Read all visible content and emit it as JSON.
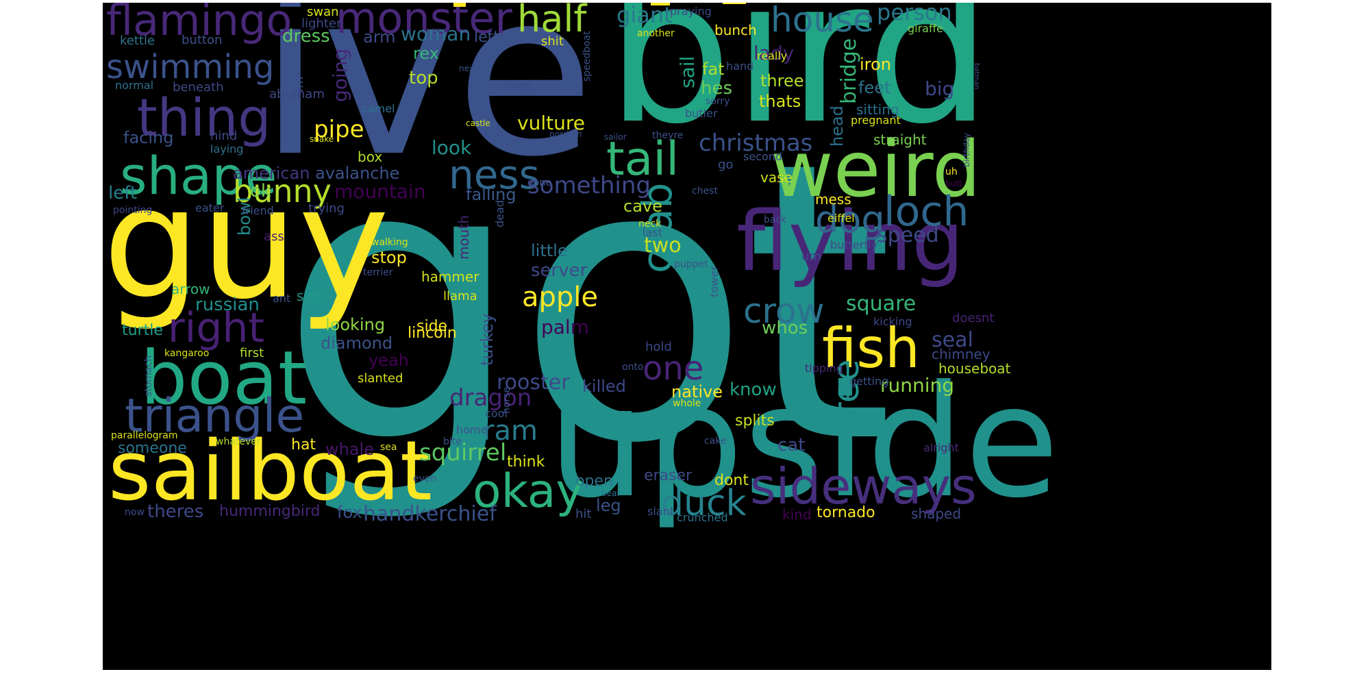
{
  "words": [
    {
      "text": "got",
      "color": "#21918c"
    },
    {
      "text": "ive",
      "color": "#3b528b"
    },
    {
      "text": "bird",
      "color": "#21a585"
    },
    {
      "text": "upside",
      "color": "#21918c"
    },
    {
      "text": "guy",
      "color": "#fde725"
    },
    {
      "text": "weird",
      "color": "#7ad151"
    },
    {
      "text": "flying",
      "color": "#482677"
    },
    {
      "text": "sailboat",
      "color": "#fde725"
    },
    {
      "text": "boat",
      "color": "#22a884"
    },
    {
      "text": "sideways",
      "color": "#472f7d"
    },
    {
      "text": "flamingo",
      "color": "#482878"
    },
    {
      "text": "monster",
      "color": "#482878"
    },
    {
      "text": "thing",
      "color": "#453781"
    },
    {
      "text": "shape",
      "color": "#29af7f"
    },
    {
      "text": "fish",
      "color": "#fde725"
    },
    {
      "text": "triangle",
      "color": "#3b528b"
    },
    {
      "text": "okay",
      "color": "#2db27d"
    },
    {
      "text": "tail",
      "color": "#35b779"
    },
    {
      "text": "ness",
      "color": "#31688e"
    },
    {
      "text": "loch",
      "color": "#31688e"
    },
    {
      "text": "right",
      "color": "#482173"
    },
    {
      "text": "crab",
      "color": "#21918c"
    },
    {
      "text": "dog",
      "color": "#31688e"
    },
    {
      "text": "half",
      "color": "#a0da39"
    },
    {
      "text": "house",
      "color": "#2c728e"
    },
    {
      "text": "swimming",
      "color": "#3b528b"
    },
    {
      "text": "bunny",
      "color": "#b5de2b"
    },
    {
      "text": "crow",
      "color": "#2c728e"
    },
    {
      "text": "tree",
      "color": "#21918c"
    },
    {
      "text": "duck",
      "color": "#26828e"
    },
    {
      "text": "one",
      "color": "#482475"
    },
    {
      "text": "apple",
      "color": "#fde725"
    },
    {
      "text": "christmas",
      "color": "#3b528b"
    },
    {
      "text": "something",
      "color": "#3e4989"
    },
    {
      "text": "ram",
      "color": "#287d8e"
    },
    {
      "text": "giant",
      "color": "#2a788e"
    },
    {
      "text": "person",
      "color": "#2a788e"
    },
    {
      "text": "squirrel",
      "color": "#5ec962"
    },
    {
      "text": "speed",
      "color": "#3e4989"
    },
    {
      "text": "dragon",
      "color": "#482475"
    },
    {
      "text": "square",
      "color": "#35b779"
    },
    {
      "text": "rooster",
      "color": "#3e4989"
    },
    {
      "text": "handkerchief",
      "color": "#3b528b"
    },
    {
      "text": "running",
      "color": "#8fd744"
    },
    {
      "text": "seal",
      "color": "#3e4989"
    },
    {
      "text": "pipe",
      "color": "#fde725"
    },
    {
      "text": "mountain",
      "color": "#440154"
    },
    {
      "text": "vulture",
      "color": "#dce319"
    },
    {
      "text": "look",
      "color": "#21918c"
    },
    {
      "text": "woman",
      "color": "#2c728e"
    },
    {
      "text": "dress",
      "color": "#5ec962"
    },
    {
      "text": "going",
      "color": "#482878"
    },
    {
      "text": "two",
      "color": "#c8e020"
    },
    {
      "text": "big",
      "color": "#3e4989"
    },
    {
      "text": "bridge",
      "color": "#35b779"
    },
    {
      "text": "lady",
      "color": "#482475"
    },
    {
      "text": "sail",
      "color": "#20a386"
    },
    {
      "text": "hes",
      "color": "#6ece58"
    },
    {
      "text": "fat",
      "color": "#b5de2b"
    },
    {
      "text": "iron",
      "color": "#fde725"
    },
    {
      "text": "feet",
      "color": "#2c728e"
    },
    {
      "text": "three",
      "color": "#b5de2b"
    },
    {
      "text": "thats",
      "color": "#dce319"
    },
    {
      "text": "head",
      "color": "#2c728e"
    },
    {
      "text": "whos",
      "color": "#6ece58"
    },
    {
      "text": "know",
      "color": "#20a386"
    },
    {
      "text": "native",
      "color": "#fde725"
    },
    {
      "text": "killed",
      "color": "#3e4989"
    },
    {
      "text": "palm",
      "color": "#440154"
    },
    {
      "text": "server",
      "color": "#3e4989"
    },
    {
      "text": "little",
      "color": "#2c728e"
    },
    {
      "text": "cave",
      "color": "#b5de2b"
    },
    {
      "text": "falling",
      "color": "#38598c"
    },
    {
      "text": "american",
      "color": "#453781"
    },
    {
      "text": "avalanche",
      "color": "#3b528b"
    },
    {
      "text": "facing",
      "color": "#3b528b"
    },
    {
      "text": "left",
      "color": "#25838e"
    },
    {
      "text": "ok",
      "color": "#7ad151"
    },
    {
      "text": "bowl",
      "color": "#228d8d"
    },
    {
      "text": "russian",
      "color": "#228d8d"
    },
    {
      "text": "looking",
      "color": "#8fd744"
    },
    {
      "text": "diamond",
      "color": "#3b528b"
    },
    {
      "text": "turtle",
      "color": "#1fa088"
    },
    {
      "text": "side",
      "color": "#fde725"
    },
    {
      "text": "lincoln",
      "color": "#fde725"
    },
    {
      "text": "turkey",
      "color": "#3b528b"
    },
    {
      "text": "stop",
      "color": "#fde725"
    },
    {
      "text": "hammer",
      "color": "#d2e21b"
    },
    {
      "text": "arrow",
      "color": "#35b779"
    },
    {
      "text": "sign",
      "color": "#1f9a8a"
    },
    {
      "text": "mouth",
      "color": "#482475"
    },
    {
      "text": "yeah",
      "color": "#440154"
    },
    {
      "text": "whale",
      "color": "#48186a"
    },
    {
      "text": "fox",
      "color": "#3b528b"
    },
    {
      "text": "hummingbird",
      "color": "#482878"
    },
    {
      "text": "theres",
      "color": "#3e4989"
    },
    {
      "text": "someone",
      "color": "#2c728e"
    },
    {
      "text": "hat",
      "color": "#fde725"
    },
    {
      "text": "think",
      "color": "#dce319"
    },
    {
      "text": "leg",
      "color": "#3b528b"
    },
    {
      "text": "open",
      "color": "#2c728e"
    },
    {
      "text": "eraser",
      "color": "#3e4989"
    },
    {
      "text": "dont",
      "color": "#dce319"
    },
    {
      "text": "kind",
      "color": "#440154"
    },
    {
      "text": "tornado",
      "color": "#fde725"
    },
    {
      "text": "shaped",
      "color": "#3e4989"
    },
    {
      "text": "splits",
      "color": "#c8e020"
    },
    {
      "text": "cat",
      "color": "#3e4989"
    },
    {
      "text": "top",
      "color": "#b5de2b"
    },
    {
      "text": "rex",
      "color": "#35b779"
    },
    {
      "text": "arm",
      "color": "#3e4989"
    },
    {
      "text": "letter",
      "color": "#3b528b"
    },
    {
      "text": "box",
      "color": "#b5de2b"
    },
    {
      "text": "bunch",
      "color": "#fde725"
    },
    {
      "text": "straight",
      "color": "#7ad151"
    },
    {
      "text": "sitting",
      "color": "#2c728e"
    },
    {
      "text": "chimney",
      "color": "#3e4989"
    },
    {
      "text": "houseboat",
      "color": "#b5de2b"
    },
    {
      "text": "mess",
      "color": "#fde725"
    },
    {
      "text": "vase",
      "color": "#d2e21b"
    },
    {
      "text": "swan",
      "color": "#dce319"
    },
    {
      "text": "lighter",
      "color": "#3e4989"
    },
    {
      "text": "button",
      "color": "#3b528b"
    },
    {
      "text": "kettle",
      "color": "#2c728e"
    },
    {
      "text": "im",
      "color": "#3b528b"
    },
    {
      "text": "abraham",
      "color": "#3e4989"
    },
    {
      "text": "beneath",
      "color": "#3e4989"
    },
    {
      "text": "normal",
      "color": "#2c728e"
    },
    {
      "text": "camel",
      "color": "#2c728e"
    },
    {
      "text": "hind",
      "color": "#3e4989"
    },
    {
      "text": "laying",
      "color": "#2c728e"
    },
    {
      "text": "eater",
      "color": "#3b528b"
    },
    {
      "text": "friend",
      "color": "#3b528b"
    },
    {
      "text": "trying",
      "color": "#3e4989"
    },
    {
      "text": "pointing",
      "color": "#3e4989"
    },
    {
      "text": "ass",
      "color": "#482173"
    },
    {
      "text": "ant",
      "color": "#3b528b"
    },
    {
      "text": "walking",
      "color": "#dce319"
    },
    {
      "text": "terrier",
      "color": "#3b528b"
    },
    {
      "text": "llama",
      "color": "#dce319"
    },
    {
      "text": "kangaroo",
      "color": "#dce319"
    },
    {
      "text": "first",
      "color": "#b5de2b"
    },
    {
      "text": "stomach",
      "color": "#3b528b"
    },
    {
      "text": "slanted",
      "color": "#dce319"
    },
    {
      "text": "horse",
      "color": "#3b528b"
    },
    {
      "text": "cool",
      "color": "#3b528b"
    },
    {
      "text": "home",
      "color": "#3b528b"
    },
    {
      "text": "bite",
      "color": "#3b528b"
    },
    {
      "text": "parallelogram",
      "color": "#dce319"
    },
    {
      "text": "whatever",
      "color": "#b5de2b"
    },
    {
      "text": "sea",
      "color": "#dce319"
    },
    {
      "text": "even",
      "color": "#3b528b"
    },
    {
      "text": "now",
      "color": "#3b528b"
    },
    {
      "text": "hit",
      "color": "#3b528b"
    },
    {
      "text": "bear",
      "color": "#2c728e"
    },
    {
      "text": "slant",
      "color": "#3b528b"
    },
    {
      "text": "crunched",
      "color": "#2c728e"
    },
    {
      "text": "whole",
      "color": "#dce319"
    },
    {
      "text": "cake",
      "color": "#3b528b"
    },
    {
      "text": "alright",
      "color": "#482878"
    },
    {
      "text": "tipping",
      "color": "#482475"
    },
    {
      "text": "getting",
      "color": "#3b528b"
    },
    {
      "text": "onto",
      "color": "#3b528b"
    },
    {
      "text": "hold",
      "color": "#3e4989"
    },
    {
      "text": "kicking",
      "color": "#3e4989"
    },
    {
      "text": "doesnt",
      "color": "#482475"
    },
    {
      "text": "butterfly",
      "color": "#3e4989"
    },
    {
      "text": "um",
      "color": "#3e4989"
    },
    {
      "text": "puppet",
      "color": "#3b528b"
    },
    {
      "text": "tower",
      "color": "#3b528b"
    },
    {
      "text": "last",
      "color": "#3b528b"
    },
    {
      "text": "neck",
      "color": "#dce319"
    },
    {
      "text": "chest",
      "color": "#3b528b"
    },
    {
      "text": "eiffel",
      "color": "#dce319"
    },
    {
      "text": "back",
      "color": "#3b528b"
    },
    {
      "text": "uh",
      "color": "#fde725"
    },
    {
      "text": "butt",
      "color": "#440154"
    },
    {
      "text": "birthday",
      "color": "#3b528b"
    },
    {
      "text": "batman",
      "color": "#3b528b"
    },
    {
      "text": "praying",
      "color": "#3e4989"
    },
    {
      "text": "another",
      "color": "#dce319"
    },
    {
      "text": "really",
      "color": "#dce319"
    },
    {
      "text": "giraffe",
      "color": "#7ad151"
    },
    {
      "text": "shit",
      "color": "#dce319"
    },
    {
      "text": "speedboat",
      "color": "#3b528b"
    },
    {
      "text": "next",
      "color": "#3b528b"
    },
    {
      "text": "away",
      "color": "#3e4989"
    },
    {
      "text": "hand",
      "color": "#3b528b"
    },
    {
      "text": "sorry",
      "color": "#3b528b"
    },
    {
      "text": "butler",
      "color": "#3b528b"
    },
    {
      "text": "pregnant",
      "color": "#dce319"
    },
    {
      "text": "castle",
      "color": "#dce319"
    },
    {
      "text": "position",
      "color": "#3b528b"
    },
    {
      "text": "sailor",
      "color": "#3b528b"
    },
    {
      "text": "theyre",
      "color": "#3b528b"
    },
    {
      "text": "snake",
      "color": "#dce319"
    },
    {
      "text": "second",
      "color": "#3b528b"
    },
    {
      "text": "go",
      "color": "#3b528b"
    },
    {
      "text": "done",
      "color": "#3b528b"
    },
    {
      "text": "dead",
      "color": "#3b528b"
    }
  ]
}
